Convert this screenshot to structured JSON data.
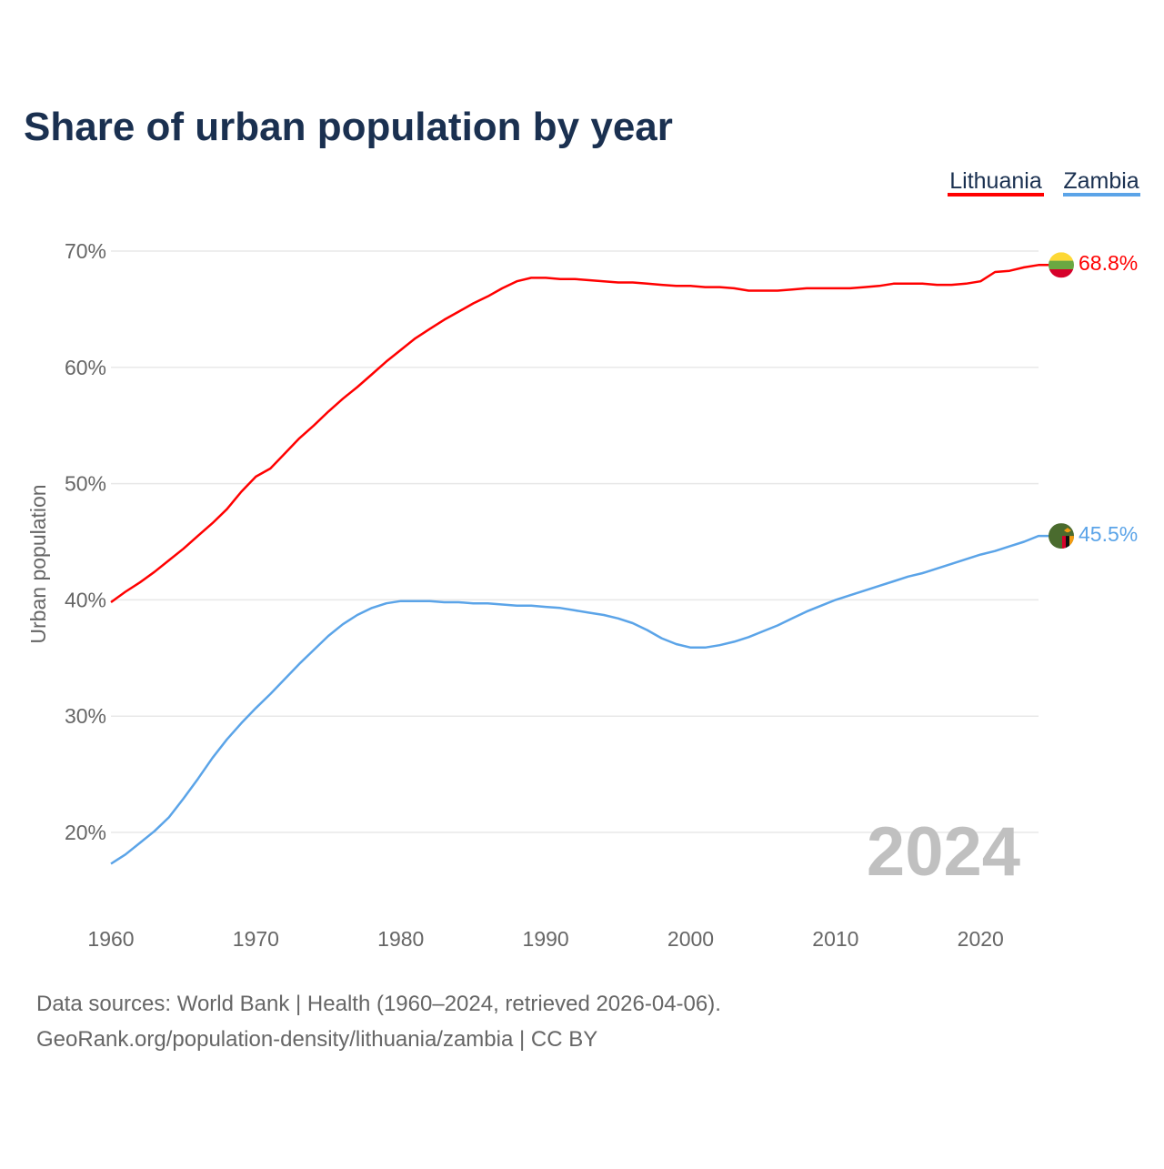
{
  "chart_data": {
    "type": "line",
    "title": "Share of urban population by year",
    "ylabel": "Urban population",
    "xlabel": "",
    "xlim": [
      1960,
      2024
    ],
    "ylim": [
      15,
      72
    ],
    "x_ticks": [
      1960,
      1970,
      1980,
      1990,
      2000,
      2010,
      2020
    ],
    "y_ticks": [
      20,
      30,
      40,
      50,
      60,
      70
    ],
    "y_tick_labels": [
      "20%",
      "30%",
      "40%",
      "50%",
      "60%",
      "70%"
    ],
    "x_tick_labels": [
      "1960",
      "1970",
      "1980",
      "1990",
      "2000",
      "2010",
      "2020"
    ],
    "grid": true,
    "legend_position": "top-right",
    "year_watermark": "2024",
    "x": [
      1960,
      1961,
      1962,
      1963,
      1964,
      1965,
      1966,
      1967,
      1968,
      1969,
      1970,
      1971,
      1972,
      1973,
      1974,
      1975,
      1976,
      1977,
      1978,
      1979,
      1980,
      1981,
      1982,
      1983,
      1984,
      1985,
      1986,
      1987,
      1988,
      1989,
      1990,
      1991,
      1992,
      1993,
      1994,
      1995,
      1996,
      1997,
      1998,
      1999,
      2000,
      2001,
      2002,
      2003,
      2004,
      2005,
      2006,
      2007,
      2008,
      2009,
      2010,
      2011,
      2012,
      2013,
      2014,
      2015,
      2016,
      2017,
      2018,
      2019,
      2020,
      2021,
      2022,
      2023,
      2024
    ],
    "series": [
      {
        "name": "Lithuania",
        "color": "#ff0000",
        "end_label": "68.8%",
        "flag": "lithuania-flag",
        "values": [
          39.8,
          40.7,
          41.5,
          42.4,
          43.4,
          44.4,
          45.5,
          46.6,
          47.8,
          49.3,
          50.6,
          51.3,
          52.6,
          53.9,
          55.0,
          56.2,
          57.3,
          58.3,
          59.4,
          60.5,
          61.5,
          62.5,
          63.3,
          64.1,
          64.8,
          65.5,
          66.1,
          66.8,
          67.4,
          67.7,
          67.7,
          67.6,
          67.6,
          67.5,
          67.4,
          67.3,
          67.3,
          67.2,
          67.1,
          67.0,
          67.0,
          66.9,
          66.9,
          66.8,
          66.6,
          66.6,
          66.6,
          66.7,
          66.8,
          66.8,
          66.8,
          66.8,
          66.9,
          67.0,
          67.2,
          67.2,
          67.2,
          67.1,
          67.1,
          67.2,
          67.4,
          68.2,
          68.3,
          68.6,
          68.8
        ]
      },
      {
        "name": "Zambia",
        "color": "#5ba4e8",
        "end_label": "45.5%",
        "flag": "zambia-flag",
        "values": [
          17.3,
          18.1,
          19.1,
          20.1,
          21.3,
          22.9,
          24.6,
          26.4,
          28.0,
          29.4,
          30.7,
          31.9,
          33.2,
          34.5,
          35.7,
          36.9,
          37.9,
          38.7,
          39.3,
          39.7,
          39.9,
          39.9,
          39.9,
          39.8,
          39.8,
          39.7,
          39.7,
          39.6,
          39.5,
          39.5,
          39.4,
          39.3,
          39.1,
          38.9,
          38.7,
          38.4,
          38.0,
          37.4,
          36.7,
          36.2,
          35.9,
          35.9,
          36.1,
          36.4,
          36.8,
          37.3,
          37.8,
          38.4,
          39.0,
          39.5,
          40.0,
          40.4,
          40.8,
          41.2,
          41.6,
          42.0,
          42.3,
          42.7,
          43.1,
          43.5,
          43.9,
          44.2,
          44.6,
          45.0,
          45.5
        ]
      }
    ]
  },
  "footer": {
    "line1": "Data sources: World Bank | Health (1960–2024, retrieved 2026-04-06).",
    "line2": "GeoRank.org/population-density/lithuania/zambia | CC BY"
  },
  "colors": {
    "title": "#1a3050",
    "axis_text": "#666666",
    "grid": "#e8e8e8",
    "watermark": "#c0c0c0"
  }
}
